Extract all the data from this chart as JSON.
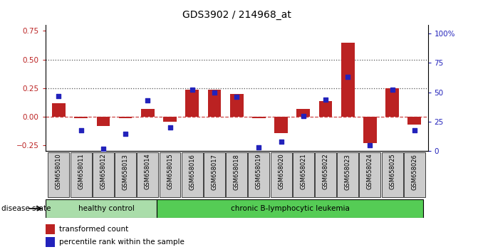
{
  "title": "GDS3902 / 214968_at",
  "samples": [
    "GSM658010",
    "GSM658011",
    "GSM658012",
    "GSM658013",
    "GSM658014",
    "GSM658015",
    "GSM658016",
    "GSM658017",
    "GSM658018",
    "GSM658019",
    "GSM658020",
    "GSM658021",
    "GSM658022",
    "GSM658023",
    "GSM658024",
    "GSM658025",
    "GSM658026"
  ],
  "transformed_count": [
    0.12,
    -0.01,
    -0.08,
    -0.01,
    0.07,
    -0.04,
    0.24,
    0.24,
    0.2,
    -0.01,
    -0.14,
    0.07,
    0.14,
    0.65,
    -0.23,
    0.25,
    -0.07
  ],
  "percentile_rank": [
    47,
    18,
    2,
    15,
    43,
    20,
    52,
    50,
    46,
    3,
    8,
    30,
    44,
    63,
    5,
    52,
    18
  ],
  "healthy_control_count": 5,
  "bar_color": "#bb2222",
  "dot_color": "#2222bb",
  "healthy_bg": "#aaddaa",
  "leukemia_bg": "#55cc55",
  "xtick_bg": "#cccccc",
  "dotted_line_color": "#555555",
  "zero_line_color": "#cc4444",
  "ylim_left": [
    -0.3,
    0.8
  ],
  "ylim_right": [
    0,
    107
  ],
  "yticks_left": [
    -0.25,
    0.0,
    0.25,
    0.5,
    0.75
  ],
  "yticks_right": [
    0,
    25,
    50,
    75,
    100
  ],
  "ytick_labels_right": [
    "0",
    "25",
    "50",
    "75",
    "100%"
  ],
  "hlines": [
    0.25,
    0.5
  ],
  "disease_state_label": "disease state",
  "healthy_label": "healthy control",
  "leukemia_label": "chronic B-lymphocytic leukemia",
  "legend_red": "transformed count",
  "legend_blue": "percentile rank within the sample"
}
